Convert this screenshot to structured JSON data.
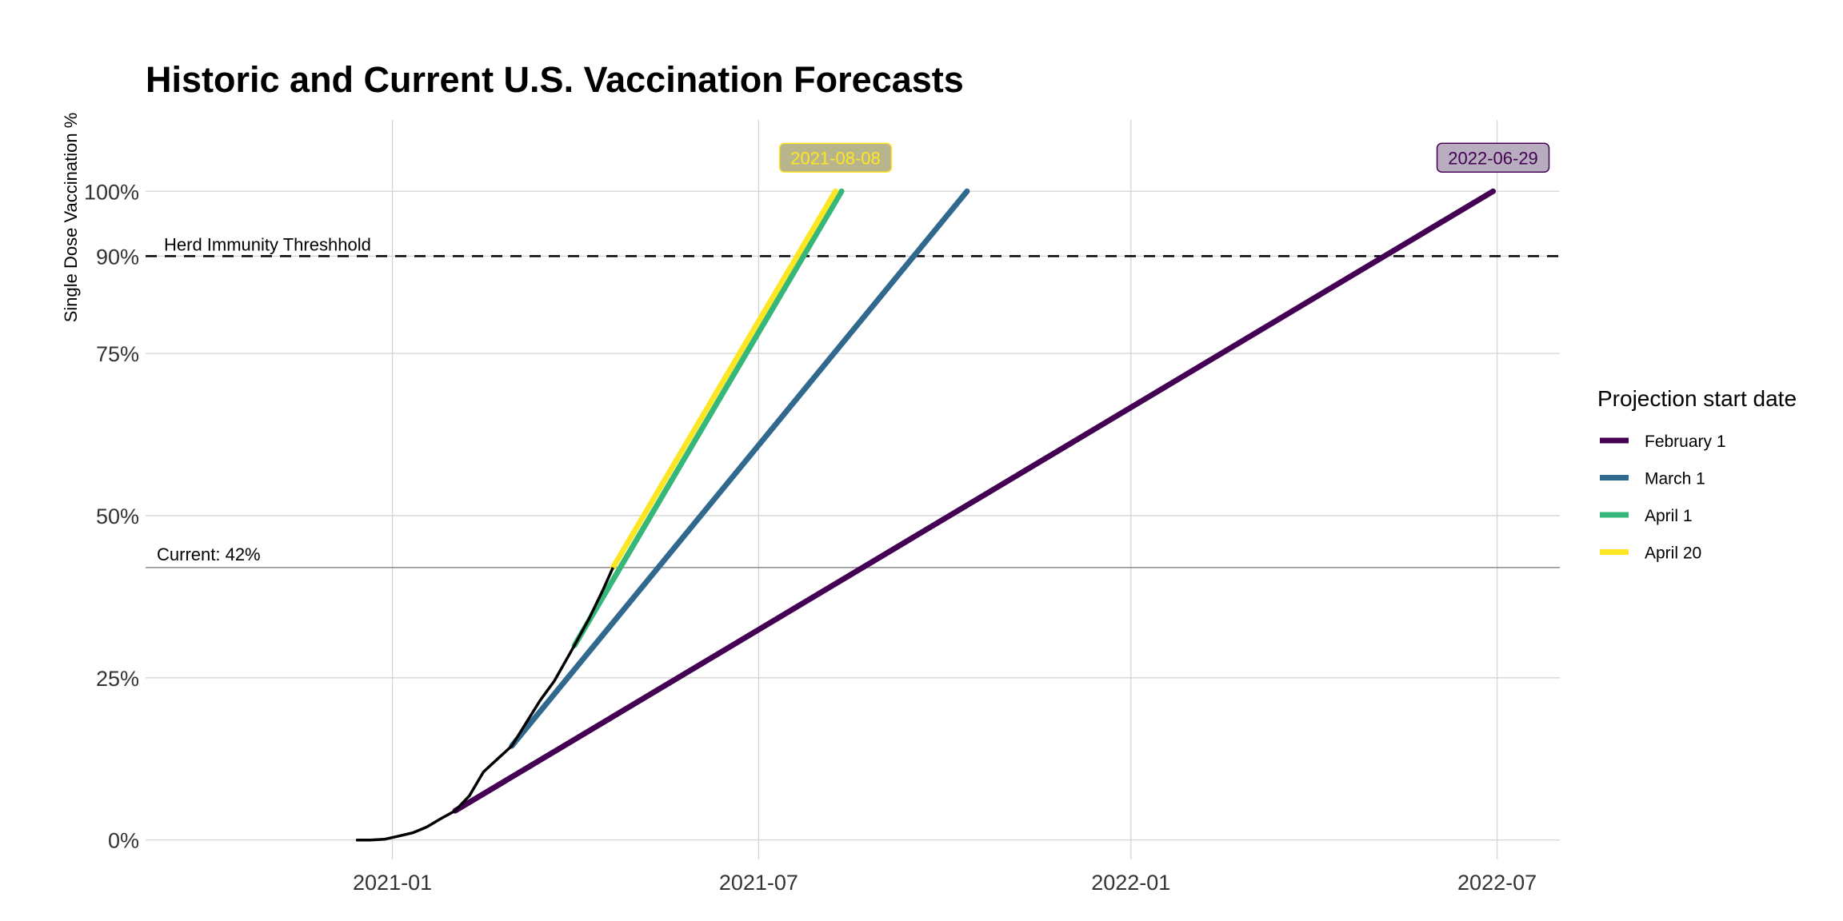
{
  "chart_data": {
    "type": "line",
    "title": "Historic and Current U.S. Vaccination Forecasts",
    "xlabel": "",
    "ylabel": "Single Dose Vaccination %",
    "xlim": [
      "2020-09-01",
      "2022-08-01"
    ],
    "ylim": [
      -0.03,
      1.11
    ],
    "x_ticks": [
      {
        "date": "2021-01-01",
        "label": "2021-01"
      },
      {
        "date": "2021-07-01",
        "label": "2021-07"
      },
      {
        "date": "2022-01-01",
        "label": "2022-01"
      },
      {
        "date": "2022-07-01",
        "label": "2022-07"
      }
    ],
    "y_ticks": [
      {
        "value": 0,
        "label": "0%"
      },
      {
        "value": 0.25,
        "label": "25%"
      },
      {
        "value": 0.5,
        "label": "50%"
      },
      {
        "value": 0.75,
        "label": "75%"
      },
      {
        "value": 0.9,
        "label": "90%"
      },
      {
        "value": 1.0,
        "label": "100%"
      }
    ],
    "grid": true,
    "legend": {
      "title": "Projection start date",
      "position": "right"
    },
    "historic": {
      "color": "#000000",
      "points": [
        {
          "x": "2020-12-14",
          "y": 0.0
        },
        {
          "x": "2020-12-21",
          "y": 0.0
        },
        {
          "x": "2020-12-28",
          "y": 0.001
        },
        {
          "x": "2021-01-04",
          "y": 0.006
        },
        {
          "x": "2021-01-11",
          "y": 0.011
        },
        {
          "x": "2021-01-18",
          "y": 0.02
        },
        {
          "x": "2021-01-25",
          "y": 0.033
        },
        {
          "x": "2021-02-01",
          "y": 0.045
        },
        {
          "x": "2021-02-08",
          "y": 0.068
        },
        {
          "x": "2021-02-15",
          "y": 0.105
        },
        {
          "x": "2021-02-22",
          "y": 0.125
        },
        {
          "x": "2021-03-01",
          "y": 0.145
        },
        {
          "x": "2021-03-08",
          "y": 0.18
        },
        {
          "x": "2021-03-15",
          "y": 0.215
        },
        {
          "x": "2021-03-22",
          "y": 0.245
        },
        {
          "x": "2021-04-01",
          "y": 0.3
        },
        {
          "x": "2021-04-08",
          "y": 0.34
        },
        {
          "x": "2021-04-15",
          "y": 0.385
        },
        {
          "x": "2021-04-20",
          "y": 0.42
        }
      ]
    },
    "series": [
      {
        "name": "February 1",
        "color": "#440154",
        "start": {
          "x": "2021-02-01",
          "y": 0.045
        },
        "end": {
          "x": "2022-06-29",
          "y": 1.0
        }
      },
      {
        "name": "March 1",
        "color": "#31688E",
        "start": {
          "x": "2021-03-01",
          "y": 0.145
        },
        "end": {
          "x": "2021-10-12",
          "y": 1.0
        }
      },
      {
        "name": "April 1",
        "color": "#35B779",
        "start": {
          "x": "2021-04-01",
          "y": 0.3
        },
        "end": {
          "x": "2021-08-11",
          "y": 1.0
        }
      },
      {
        "name": "April 20",
        "color": "#FDE725",
        "start": {
          "x": "2021-04-20",
          "y": 0.42
        },
        "end": {
          "x": "2021-08-08",
          "y": 1.0
        }
      }
    ],
    "annotations": {
      "herd": {
        "label": "Herd Immunity Threshhold",
        "value": 0.9
      },
      "current": {
        "label": "Current: 42%",
        "value": 0.42
      }
    },
    "callouts": [
      {
        "label": "2021-08-08",
        "x": "2021-08-08",
        "y": 1.0,
        "fill": "#B8B48B",
        "text_color": "#FDE725",
        "border": "#FDE725"
      },
      {
        "label": "2022-06-29",
        "x": "2022-06-29",
        "y": 1.0,
        "fill": "#B8ACBF",
        "text_color": "#440154",
        "border": "#440154"
      }
    ]
  }
}
